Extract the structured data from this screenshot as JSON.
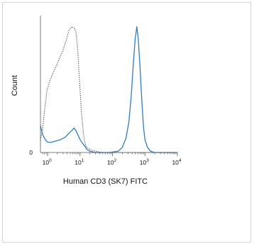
{
  "chart_data": {
    "type": "line",
    "title": "",
    "xlabel": "Human CD3 (SK7) FITC",
    "ylabel": "Count",
    "x_scale": "log",
    "xlim": [
      0.6,
      10000
    ],
    "x_ticks": [
      {
        "value": 1,
        "base": "10",
        "exp": "0"
      },
      {
        "value": 10,
        "base": "10",
        "exp": "1"
      },
      {
        "value": 100,
        "base": "10",
        "exp": "2"
      },
      {
        "value": 1000,
        "base": "10",
        "exp": "3"
      },
      {
        "value": 10000,
        "base": "10",
        "exp": "4"
      }
    ],
    "y_ticks": [
      {
        "value": 0,
        "label": "0"
      }
    ],
    "ylim": [
      0,
      100
    ],
    "grid": false,
    "legend": "none",
    "series": [
      {
        "style": "dotted",
        "color": "#333333",
        "points": [
          [
            0.6,
            10
          ],
          [
            0.7,
            18
          ],
          [
            0.8,
            32
          ],
          [
            0.95,
            48
          ],
          [
            1.2,
            57
          ],
          [
            1.6,
            64
          ],
          [
            2.2,
            72
          ],
          [
            3.0,
            80
          ],
          [
            3.8,
            88
          ],
          [
            4.5,
            95
          ],
          [
            5.5,
            98
          ],
          [
            6.5,
            97
          ],
          [
            7.5,
            94
          ],
          [
            8.5,
            80
          ],
          [
            9.5,
            58
          ],
          [
            11,
            32
          ],
          [
            13,
            12
          ],
          [
            15,
            5
          ],
          [
            18,
            3
          ],
          [
            22,
            2
          ],
          [
            30,
            1
          ],
          [
            50,
            0
          ],
          [
            1000,
            0
          ],
          [
            10000,
            0
          ]
        ]
      },
      {
        "style": "solid",
        "color": "#2f7dc0",
        "points": [
          [
            0.6,
            21
          ],
          [
            0.7,
            14
          ],
          [
            0.85,
            10
          ],
          [
            1.0,
            8
          ],
          [
            1.3,
            8
          ],
          [
            1.8,
            9
          ],
          [
            2.5,
            10
          ],
          [
            3.5,
            12
          ],
          [
            4.5,
            15
          ],
          [
            5.5,
            17
          ],
          [
            6.5,
            19
          ],
          [
            7.5,
            17
          ],
          [
            8.5,
            14
          ],
          [
            10,
            10
          ],
          [
            12,
            7
          ],
          [
            14,
            5
          ],
          [
            16,
            2.5
          ],
          [
            20,
            1
          ],
          [
            30,
            0
          ],
          [
            80,
            0
          ],
          [
            150,
            1
          ],
          [
            200,
            4
          ],
          [
            260,
            11
          ],
          [
            320,
            24
          ],
          [
            380,
            45
          ],
          [
            440,
            70
          ],
          [
            500,
            88
          ],
          [
            560,
            98
          ],
          [
            620,
            89
          ],
          [
            700,
            68
          ],
          [
            800,
            40
          ],
          [
            900,
            20
          ],
          [
            1000,
            10
          ],
          [
            1200,
            4
          ],
          [
            1500,
            1
          ],
          [
            2000,
            0
          ],
          [
            10000,
            0
          ]
        ]
      }
    ]
  }
}
